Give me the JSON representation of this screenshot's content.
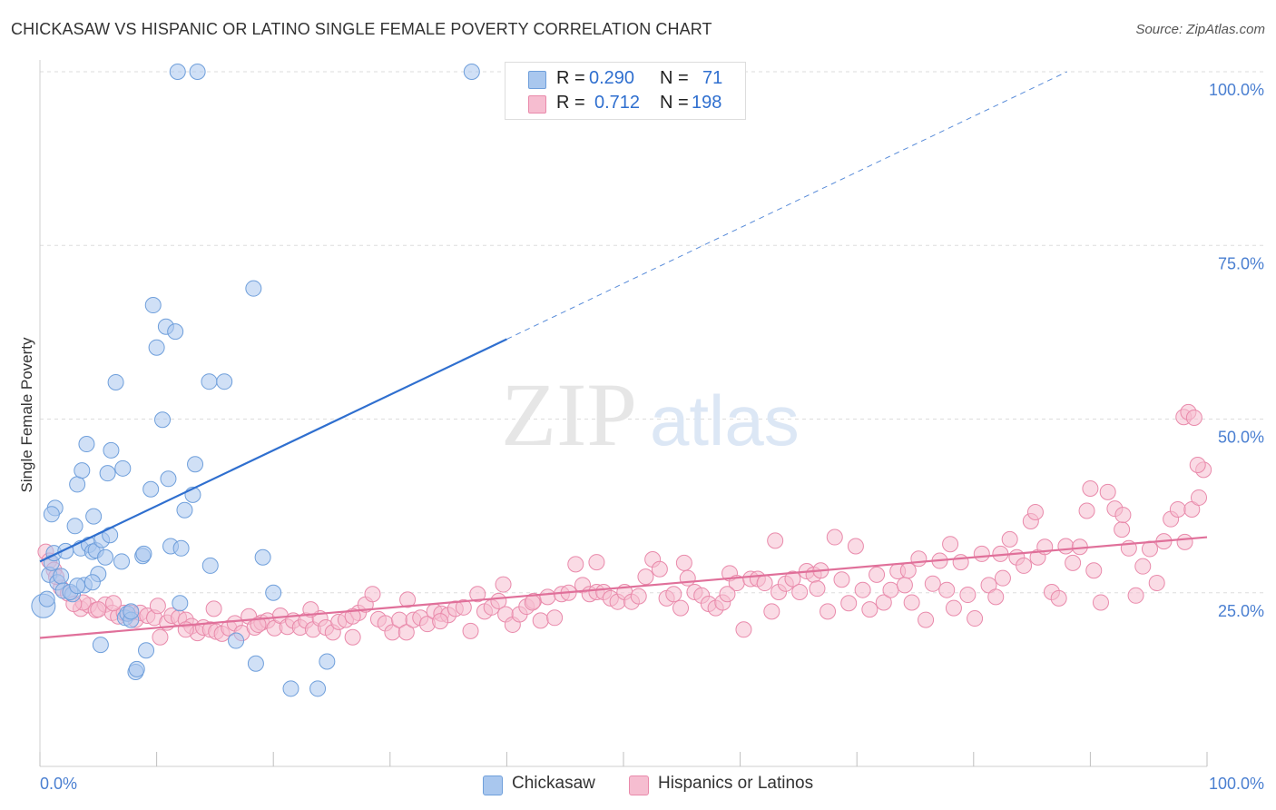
{
  "title": "CHICKASAW VS HISPANIC OR LATINO SINGLE FEMALE POVERTY CORRELATION CHART",
  "source": "Source: ZipAtlas.com",
  "watermark": {
    "zip": "ZIP",
    "atlas": "atlas"
  },
  "colors": {
    "blue_fill": "#a9c7ee",
    "blue_stroke": "#6f9fdb",
    "blue_line": "#2f6fcf",
    "pink_fill": "#f6bdd0",
    "pink_stroke": "#e98aab",
    "pink_line": "#e0709a",
    "axis_text": "#4a7fd1",
    "grid": "#dddddd"
  },
  "legend": {
    "rows": [
      {
        "r_label": "R =",
        "r_value": "0.290",
        "n_label": "N =",
        "n_value": "71",
        "color": "#a9c7ee"
      },
      {
        "r_label": "R =",
        "r_value": "0.712",
        "n_label": "N =",
        "n_value": "198",
        "color": "#f6bdd0"
      }
    ]
  },
  "bottom_legend": [
    {
      "label": "Chickasaw",
      "color": "#a9c7ee"
    },
    {
      "label": "Hispanics or Latinos",
      "color": "#f6bdd0"
    }
  ],
  "chart_data": {
    "type": "scatter",
    "ylabel": "Single Female Poverty",
    "x_tick_labels": [
      "0.0%",
      "100.0%"
    ],
    "y_tick_labels": [
      "25.0%",
      "50.0%",
      "75.0%",
      "100.0%"
    ],
    "xlim": [
      0,
      100
    ],
    "ylim": [
      0,
      100
    ],
    "grid": true,
    "series": [
      {
        "name": "Chickasaw",
        "trend": {
          "x": [
            0,
            40
          ],
          "y": [
            29.5,
            61.5
          ],
          "dashed_extension_to": [
            88,
            100
          ]
        },
        "points": [
          [
            0.3,
            23.1
          ],
          [
            0.6,
            24.1
          ],
          [
            0.8,
            27.6
          ],
          [
            1.0,
            29.3
          ],
          [
            1.2,
            30.7
          ],
          [
            1.5,
            26.5
          ],
          [
            1.8,
            27.4
          ],
          [
            2.0,
            25.3
          ],
          [
            2.2,
            31.0
          ],
          [
            2.8,
            24.8
          ],
          [
            3.0,
            34.6
          ],
          [
            3.2,
            40.6
          ],
          [
            3.5,
            31.4
          ],
          [
            3.6,
            42.6
          ],
          [
            3.8,
            26.1
          ],
          [
            4.0,
            46.4
          ],
          [
            4.2,
            31.9
          ],
          [
            4.5,
            30.9
          ],
          [
            4.6,
            36.0
          ],
          [
            4.8,
            31.1
          ],
          [
            5.0,
            27.7
          ],
          [
            5.2,
            17.5
          ],
          [
            5.3,
            32.6
          ],
          [
            5.6,
            30.1
          ],
          [
            5.8,
            42.2
          ],
          [
            6.0,
            33.3
          ],
          [
            6.1,
            45.5
          ],
          [
            6.5,
            55.3
          ],
          [
            7.0,
            29.5
          ],
          [
            7.1,
            42.9
          ],
          [
            7.3,
            21.4
          ],
          [
            7.5,
            22.0
          ],
          [
            7.8,
            21.1
          ],
          [
            8.2,
            13.6
          ],
          [
            8.3,
            14.0
          ],
          [
            8.8,
            30.3
          ],
          [
            8.9,
            30.6
          ],
          [
            9.1,
            16.7
          ],
          [
            9.5,
            39.9
          ],
          [
            9.7,
            66.4
          ],
          [
            10.0,
            60.3
          ],
          [
            10.5,
            49.9
          ],
          [
            10.8,
            63.3
          ],
          [
            11.0,
            41.4
          ],
          [
            11.2,
            31.7
          ],
          [
            11.6,
            62.6
          ],
          [
            12.0,
            23.5
          ],
          [
            12.1,
            31.4
          ],
          [
            12.4,
            36.9
          ],
          [
            13.1,
            39.1
          ],
          [
            13.3,
            43.5
          ],
          [
            14.5,
            55.4
          ],
          [
            14.6,
            28.9
          ],
          [
            15.8,
            55.4
          ],
          [
            16.8,
            18.1
          ],
          [
            18.3,
            68.8
          ],
          [
            18.5,
            14.8
          ],
          [
            19.1,
            30.1
          ],
          [
            20.0,
            25.0
          ],
          [
            21.5,
            11.2
          ],
          [
            23.8,
            11.2
          ],
          [
            24.6,
            15.1
          ],
          [
            11.8,
            100
          ],
          [
            13.5,
            100
          ],
          [
            37.0,
            100
          ],
          [
            1.3,
            37.2
          ],
          [
            2.6,
            25.1
          ],
          [
            1.0,
            36.3
          ],
          [
            7.8,
            22.3
          ],
          [
            3.2,
            26.0
          ],
          [
            4.5,
            26.5
          ]
        ]
      },
      {
        "name": "Hispanics or Latinos",
        "trend": {
          "x": [
            0,
            100
          ],
          "y": [
            18.5,
            33.0
          ]
        },
        "points": [
          [
            0.5,
            30.9
          ],
          [
            0.8,
            29.6
          ],
          [
            1.2,
            28.3
          ],
          [
            1.8,
            25.7
          ],
          [
            2.4,
            24.9
          ],
          [
            3.5,
            22.7
          ],
          [
            4.2,
            23.2
          ],
          [
            4.8,
            22.5
          ],
          [
            5.6,
            23.3
          ],
          [
            6.2,
            22.1
          ],
          [
            6.7,
            21.6
          ],
          [
            7.2,
            22.1
          ],
          [
            7.8,
            22.1
          ],
          [
            8.2,
            21.1
          ],
          [
            8.6,
            22.1
          ],
          [
            9.2,
            21.7
          ],
          [
            9.8,
            21.4
          ],
          [
            10.3,
            18.6
          ],
          [
            10.9,
            20.7
          ],
          [
            11.3,
            21.7
          ],
          [
            11.9,
            21.4
          ],
          [
            12.5,
            21.1
          ],
          [
            13.0,
            20.2
          ],
          [
            13.5,
            19.2
          ],
          [
            14.0,
            20.0
          ],
          [
            14.6,
            19.7
          ],
          [
            15.1,
            19.4
          ],
          [
            15.6,
            19.1
          ],
          [
            16.2,
            19.9
          ],
          [
            16.7,
            20.6
          ],
          [
            17.3,
            19.2
          ],
          [
            17.9,
            21.6
          ],
          [
            18.4,
            20.0
          ],
          [
            19.0,
            20.7
          ],
          [
            19.5,
            21.0
          ],
          [
            20.1,
            19.9
          ],
          [
            20.6,
            21.7
          ],
          [
            21.2,
            20.1
          ],
          [
            21.7,
            21.0
          ],
          [
            22.3,
            20.0
          ],
          [
            22.8,
            21.0
          ],
          [
            23.4,
            19.7
          ],
          [
            24.0,
            21.3
          ],
          [
            24.5,
            20.0
          ],
          [
            25.1,
            19.3
          ],
          [
            25.6,
            20.8
          ],
          [
            26.2,
            21.1
          ],
          [
            26.8,
            18.6
          ],
          [
            27.3,
            22.1
          ],
          [
            27.9,
            23.3
          ],
          [
            28.5,
            24.8
          ],
          [
            29.0,
            21.2
          ],
          [
            29.6,
            20.6
          ],
          [
            30.2,
            19.3
          ],
          [
            30.8,
            21.1
          ],
          [
            31.4,
            19.3
          ],
          [
            32.0,
            21.1
          ],
          [
            32.6,
            21.4
          ],
          [
            33.2,
            20.5
          ],
          [
            33.8,
            22.3
          ],
          [
            34.4,
            22.0
          ],
          [
            35.0,
            21.8
          ],
          [
            35.6,
            22.7
          ],
          [
            36.3,
            22.9
          ],
          [
            36.9,
            19.5
          ],
          [
            37.5,
            24.8
          ],
          [
            38.1,
            22.3
          ],
          [
            38.7,
            22.9
          ],
          [
            39.3,
            23.8
          ],
          [
            39.9,
            21.9
          ],
          [
            40.5,
            20.4
          ],
          [
            41.1,
            21.9
          ],
          [
            41.7,
            23.0
          ],
          [
            42.3,
            23.8
          ],
          [
            42.9,
            21.0
          ],
          [
            43.5,
            24.4
          ],
          [
            44.1,
            21.4
          ],
          [
            44.7,
            24.8
          ],
          [
            45.3,
            25.0
          ],
          [
            45.9,
            29.1
          ],
          [
            46.5,
            26.1
          ],
          [
            47.1,
            24.8
          ],
          [
            47.7,
            25.1
          ],
          [
            48.3,
            25.1
          ],
          [
            48.9,
            24.2
          ],
          [
            49.5,
            23.7
          ],
          [
            50.1,
            25.1
          ],
          [
            50.7,
            23.7
          ],
          [
            51.3,
            24.5
          ],
          [
            51.9,
            27.3
          ],
          [
            52.5,
            29.8
          ],
          [
            53.1,
            28.4
          ],
          [
            53.7,
            24.2
          ],
          [
            54.3,
            24.8
          ],
          [
            54.9,
            22.8
          ],
          [
            55.5,
            27.1
          ],
          [
            56.1,
            25.1
          ],
          [
            56.7,
            24.6
          ],
          [
            57.3,
            23.4
          ],
          [
            57.9,
            22.8
          ],
          [
            58.5,
            23.6
          ],
          [
            59.1,
            27.8
          ],
          [
            59.7,
            26.4
          ],
          [
            60.3,
            19.7
          ],
          [
            60.9,
            27.0
          ],
          [
            61.5,
            27.0
          ],
          [
            62.1,
            26.4
          ],
          [
            62.7,
            22.3
          ],
          [
            63.3,
            25.1
          ],
          [
            63.9,
            26.3
          ],
          [
            64.5,
            27.0
          ],
          [
            65.1,
            25.1
          ],
          [
            65.7,
            28.1
          ],
          [
            66.3,
            27.6
          ],
          [
            66.9,
            28.2
          ],
          [
            67.5,
            22.3
          ],
          [
            68.1,
            33.0
          ],
          [
            68.7,
            26.9
          ],
          [
            69.3,
            23.5
          ],
          [
            69.9,
            31.7
          ],
          [
            70.5,
            25.4
          ],
          [
            71.1,
            22.6
          ],
          [
            71.7,
            27.6
          ],
          [
            72.3,
            23.6
          ],
          [
            72.9,
            25.4
          ],
          [
            73.5,
            28.1
          ],
          [
            74.1,
            26.1
          ],
          [
            74.7,
            23.6
          ],
          [
            75.3,
            29.9
          ],
          [
            75.9,
            21.1
          ],
          [
            76.5,
            26.3
          ],
          [
            77.1,
            29.6
          ],
          [
            77.7,
            25.4
          ],
          [
            78.3,
            22.8
          ],
          [
            78.9,
            29.4
          ],
          [
            79.5,
            24.7
          ],
          [
            80.1,
            21.3
          ],
          [
            80.7,
            30.6
          ],
          [
            81.3,
            26.1
          ],
          [
            81.9,
            24.4
          ],
          [
            82.5,
            27.1
          ],
          [
            83.1,
            32.7
          ],
          [
            83.7,
            30.1
          ],
          [
            84.3,
            28.9
          ],
          [
            84.9,
            35.3
          ],
          [
            85.5,
            30.1
          ],
          [
            86.1,
            31.6
          ],
          [
            86.7,
            25.1
          ],
          [
            87.3,
            24.2
          ],
          [
            87.9,
            31.7
          ],
          [
            88.5,
            29.3
          ],
          [
            89.1,
            31.6
          ],
          [
            89.7,
            36.8
          ],
          [
            90.3,
            28.2
          ],
          [
            90.9,
            23.6
          ],
          [
            91.5,
            39.5
          ],
          [
            92.1,
            37.1
          ],
          [
            92.7,
            34.1
          ],
          [
            93.3,
            31.4
          ],
          [
            93.9,
            24.6
          ],
          [
            94.5,
            28.8
          ],
          [
            95.1,
            31.3
          ],
          [
            95.7,
            26.4
          ],
          [
            96.3,
            32.4
          ],
          [
            96.9,
            35.6
          ],
          [
            97.5,
            37.0
          ],
          [
            98.1,
            32.3
          ],
          [
            98.7,
            37.0
          ],
          [
            99.3,
            38.7
          ],
          [
            99.7,
            42.7
          ],
          [
            98.0,
            50.3
          ],
          [
            98.4,
            51.0
          ],
          [
            98.9,
            50.2
          ],
          [
            99.2,
            43.4
          ],
          [
            90.0,
            40.0
          ],
          [
            78.0,
            32.0
          ],
          [
            63.0,
            32.5
          ],
          [
            55.2,
            29.3
          ],
          [
            47.7,
            29.4
          ],
          [
            39.7,
            26.2
          ],
          [
            31.5,
            24.0
          ],
          [
            23.2,
            22.6
          ],
          [
            14.9,
            22.7
          ],
          [
            10.1,
            23.1
          ],
          [
            6.3,
            23.5
          ],
          [
            3.7,
            23.6
          ],
          [
            1.4,
            27.3
          ],
          [
            2.9,
            23.4
          ],
          [
            5.0,
            22.6
          ],
          [
            12.5,
            19.7
          ],
          [
            18.7,
            20.4
          ],
          [
            26.8,
            21.6
          ],
          [
            34.3,
            20.9
          ],
          [
            42.2,
            23.6
          ],
          [
            58.9,
            24.8
          ],
          [
            66.6,
            25.6
          ],
          [
            74.4,
            28.2
          ],
          [
            82.3,
            30.6
          ],
          [
            85.3,
            36.6
          ],
          [
            92.8,
            36.2
          ]
        ]
      }
    ]
  }
}
